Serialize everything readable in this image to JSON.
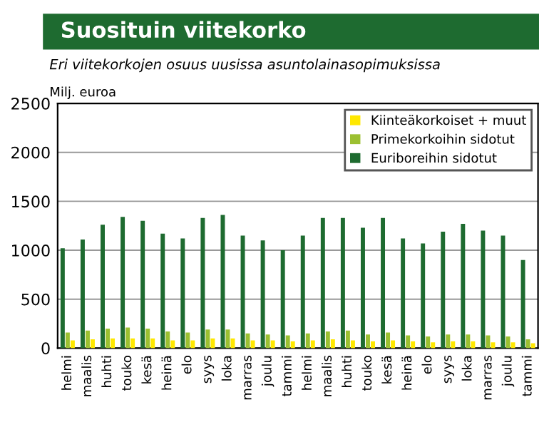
{
  "chart_data": {
    "type": "bar",
    "title": "Suosituin viitekorko",
    "subtitle": "Eri viitekorkojen osuus uusissa asuntolainasopimuksissa",
    "ylabel": "Milj. euroa",
    "categories": [
      "helmi",
      "maalis",
      "huhti",
      "touko",
      "kesä",
      "heinä",
      "elo",
      "syys",
      "loka",
      "marras",
      "joulu",
      "tammi",
      "helmi",
      "maalis",
      "huhti",
      "touko",
      "kesä",
      "heinä",
      "elo",
      "syys",
      "loka",
      "marras",
      "joulu",
      "tammi"
    ],
    "series": [
      {
        "name": "Euriboreihin sidotut",
        "color": "#1e6b30",
        "values": [
          1020,
          1110,
          1260,
          1340,
          1300,
          1170,
          1120,
          1330,
          1360,
          1150,
          1100,
          1000,
          1150,
          1330,
          1330,
          1230,
          1330,
          1120,
          1070,
          1190,
          1270,
          1200,
          1150,
          900
        ]
      },
      {
        "name": "Primekorkoihin sidotut",
        "color": "#9cc031",
        "values": [
          160,
          180,
          200,
          210,
          200,
          170,
          160,
          190,
          190,
          150,
          140,
          130,
          150,
          170,
          180,
          140,
          160,
          130,
          120,
          140,
          140,
          130,
          120,
          90
        ]
      },
      {
        "name": "Kiinteäkorkoiset + muut",
        "color": "#ffe800",
        "values": [
          80,
          90,
          100,
          100,
          100,
          80,
          80,
          100,
          100,
          80,
          80,
          70,
          80,
          90,
          80,
          70,
          80,
          70,
          60,
          70,
          70,
          60,
          60,
          50
        ]
      }
    ],
    "ylim": [
      0,
      2500
    ],
    "yticks": [
      0,
      500,
      1000,
      1500,
      2000,
      2500
    ],
    "grid": "y",
    "legend": "top right"
  }
}
